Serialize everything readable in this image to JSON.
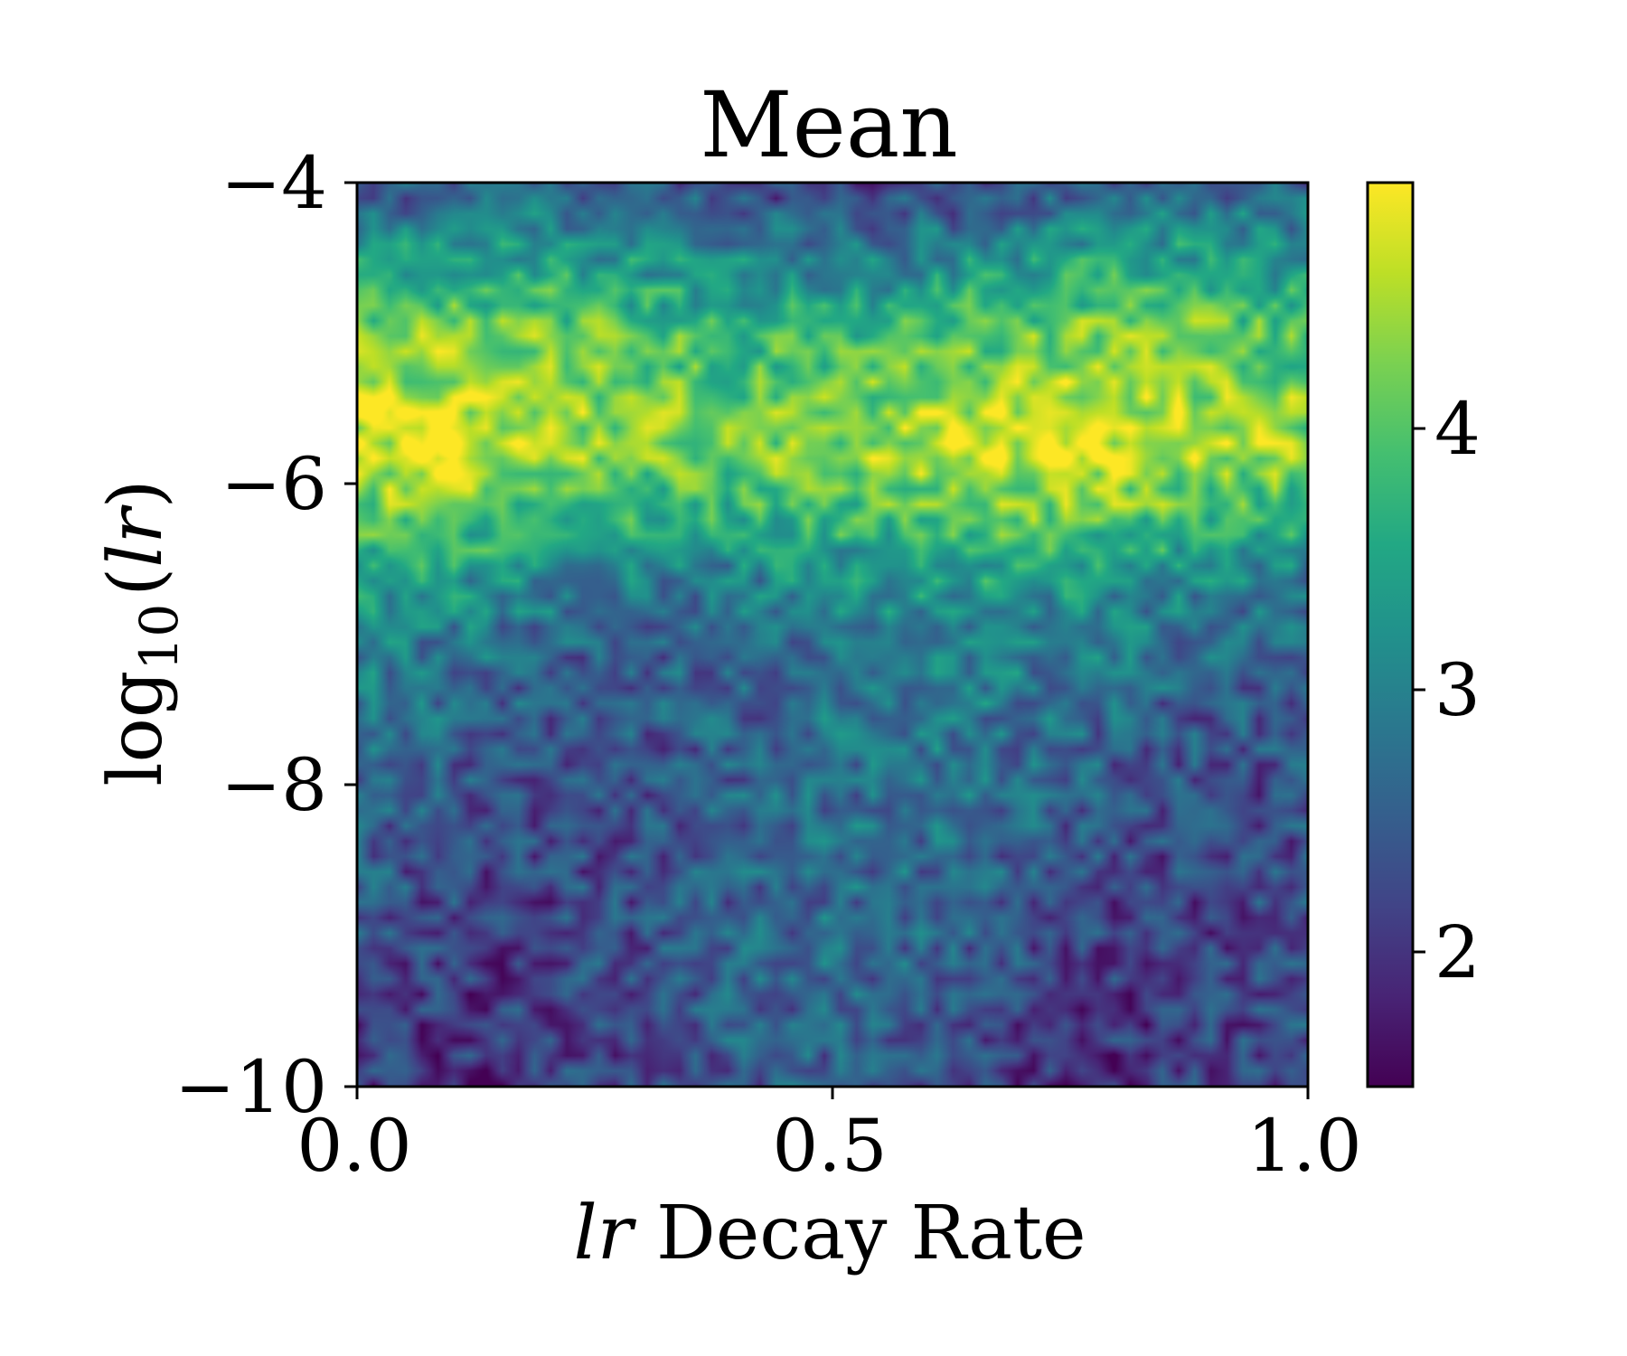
{
  "chart_data": {
    "type": "heatmap",
    "title": "Mean",
    "xlabel_parts": {
      "italic": "lr",
      "rest": " Decay Rate"
    },
    "ylabel_parts": {
      "base": "log",
      "sub": "10",
      "open": "(",
      "italic": "lr",
      "close": ")"
    },
    "xlim": [
      0.0,
      1.0
    ],
    "ylim": [
      -10,
      -4
    ],
    "xticks": [
      0.0,
      0.5,
      1.0
    ],
    "xtick_labels": [
      "0.0",
      "0.5",
      "1.0"
    ],
    "yticks": [
      -4,
      -6,
      -8,
      -10
    ],
    "ytick_labels": [
      "−4",
      "−6",
      "−8",
      "−10"
    ],
    "colorbar": {
      "colormap": "viridis",
      "range": [
        1.45,
        4.95
      ],
      "ticks": [
        2,
        3,
        4
      ],
      "tick_labels": [
        "2",
        "3",
        "4"
      ]
    },
    "grid": false,
    "description_profile": {
      "log10_lr": [
        -4.0,
        -4.5,
        -5.0,
        -5.5,
        -5.8,
        -6.2,
        -6.6,
        -7.0,
        -8.0,
        -9.0,
        -10.0
      ],
      "approx_mean_value": [
        2.3,
        3.2,
        4.0,
        4.4,
        4.5,
        3.9,
        3.2,
        2.8,
        2.5,
        2.4,
        2.2
      ]
    }
  }
}
